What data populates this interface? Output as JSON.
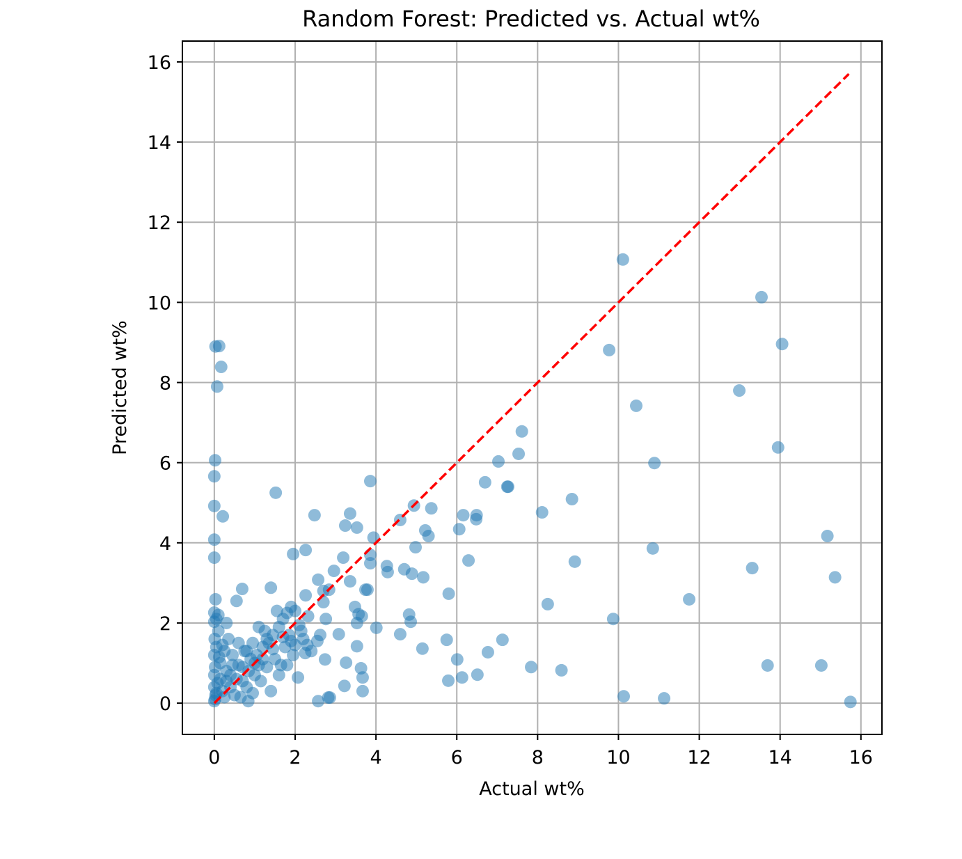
{
  "chart_data": {
    "type": "scatter",
    "title": "Random Forest: Predicted vs. Actual wt%",
    "xlabel": "Actual wt%",
    "ylabel": "Predicted wt%",
    "xlim": [
      -0.79,
      16.52
    ],
    "ylim": [
      -0.78,
      16.52
    ],
    "xticks": [
      0,
      2,
      4,
      6,
      8,
      10,
      12,
      14,
      16
    ],
    "yticks": [
      0,
      2,
      4,
      6,
      8,
      10,
      12,
      14,
      16
    ],
    "grid": true,
    "marker_color": "#1f77b4",
    "marker_alpha": 0.5,
    "reference_line": {
      "x": [
        0,
        15.7
      ],
      "y": [
        0,
        15.7
      ],
      "color": "#ff0000",
      "style": "dashed"
    },
    "points": [
      [
        10.11,
        11.07
      ],
      [
        13.54,
        10.13
      ],
      [
        14.05,
        8.96
      ],
      [
        9.77,
        8.81
      ],
      [
        12.99,
        7.8
      ],
      [
        10.44,
        7.42
      ],
      [
        13.95,
        6.38
      ],
      [
        10.89,
        5.99
      ],
      [
        7.61,
        6.78
      ],
      [
        7.53,
        6.22
      ],
      [
        7.03,
        6.03
      ],
      [
        7.25,
        5.4
      ],
      [
        7.27,
        5.4
      ],
      [
        6.7,
        5.51
      ],
      [
        8.85,
        5.09
      ],
      [
        8.11,
        4.76
      ],
      [
        15.17,
        4.17
      ],
      [
        10.85,
        3.86
      ],
      [
        8.92,
        3.53
      ],
      [
        13.31,
        3.37
      ],
      [
        15.36,
        3.14
      ],
      [
        11.75,
        2.59
      ],
      [
        8.25,
        2.47
      ],
      [
        9.87,
        2.1
      ],
      [
        7.13,
        1.58
      ],
      [
        7.84,
        0.9
      ],
      [
        8.59,
        0.82
      ],
      [
        13.69,
        0.94
      ],
      [
        15.02,
        0.94
      ],
      [
        10.13,
        0.17
      ],
      [
        11.13,
        0.12
      ],
      [
        15.74,
        0.03
      ],
      [
        6.77,
        1.27
      ],
      [
        6.51,
        0.71
      ],
      [
        6.13,
        0.64
      ],
      [
        5.79,
        0.56
      ],
      [
        6.01,
        1.09
      ],
      [
        5.75,
        1.58
      ],
      [
        5.8,
        2.73
      ],
      [
        6.29,
        3.56
      ],
      [
        6.06,
        4.34
      ],
      [
        6.16,
        4.69
      ],
      [
        6.48,
        4.59
      ],
      [
        6.49,
        4.69
      ],
      [
        5.37,
        4.86
      ],
      [
        5.3,
        4.17
      ],
      [
        5.22,
        4.31
      ],
      [
        4.94,
        4.93
      ],
      [
        4.6,
        4.57
      ],
      [
        4.98,
        3.89
      ],
      [
        5.17,
        3.14
      ],
      [
        4.89,
        3.23
      ],
      [
        4.7,
        3.34
      ],
      [
        4.82,
        2.21
      ],
      [
        4.86,
        2.03
      ],
      [
        4.6,
        1.72
      ],
      [
        5.15,
        1.36
      ],
      [
        3.86,
        5.54
      ],
      [
        3.94,
        4.13
      ],
      [
        3.86,
        3.7
      ],
      [
        3.86,
        3.49
      ],
      [
        4.27,
        3.42
      ],
      [
        4.29,
        3.27
      ],
      [
        3.74,
        2.83
      ],
      [
        3.79,
        2.83
      ],
      [
        4.01,
        1.88
      ],
      [
        3.36,
        4.73
      ],
      [
        3.24,
        4.43
      ],
      [
        3.53,
        4.38
      ],
      [
        3.19,
        3.63
      ],
      [
        3.36,
        3.04
      ],
      [
        3.48,
        2.4
      ],
      [
        3.57,
        2.22
      ],
      [
        3.65,
        2.17
      ],
      [
        3.53,
        2.0
      ],
      [
        3.53,
        1.42
      ],
      [
        3.63,
        0.87
      ],
      [
        3.67,
        0.64
      ],
      [
        3.67,
        0.3
      ],
      [
        3.26,
        1.01
      ],
      [
        3.22,
        0.43
      ],
      [
        3.08,
        1.72
      ],
      [
        2.96,
        3.3
      ],
      [
        2.84,
        2.83
      ],
      [
        2.7,
        2.8
      ],
      [
        2.57,
        3.08
      ],
      [
        2.48,
        4.69
      ],
      [
        2.26,
        3.82
      ],
      [
        2.26,
        2.69
      ],
      [
        1.95,
        3.72
      ],
      [
        1.52,
        5.25
      ],
      [
        1.4,
        2.88
      ],
      [
        0.69,
        2.85
      ],
      [
        0.55,
        2.55
      ],
      [
        2.7,
        2.52
      ],
      [
        2.76,
        2.1
      ],
      [
        2.74,
        1.09
      ],
      [
        2.57,
        0.05
      ],
      [
        2.82,
        0.14
      ],
      [
        2.86,
        0.14
      ],
      [
        2.07,
        0.64
      ],
      [
        0.84,
        0.05
      ],
      [
        0.03,
        8.9
      ],
      [
        0.12,
        8.91
      ],
      [
        0.17,
        8.39
      ],
      [
        0.07,
        7.9
      ],
      [
        0.02,
        6.06
      ],
      [
        0.0,
        5.66
      ],
      [
        0.0,
        4.92
      ],
      [
        0.21,
        4.66
      ],
      [
        0.0,
        4.08
      ],
      [
        0.0,
        3.63
      ],
      [
        0.03,
        2.59
      ],
      [
        0.0,
        2.26
      ],
      [
        0.0,
        2.03
      ],
      [
        0.05,
        2.1
      ],
      [
        0.1,
        2.2
      ],
      [
        0.3,
        2.0
      ],
      [
        2.32,
        2.17
      ],
      [
        2.62,
        1.7
      ],
      [
        2.55,
        1.55
      ],
      [
        2.4,
        1.3
      ],
      [
        2.2,
        1.6
      ],
      [
        2.1,
        1.95
      ],
      [
        2.0,
        2.3
      ],
      [
        1.9,
        2.4
      ],
      [
        1.8,
        2.25
      ],
      [
        1.7,
        2.1
      ],
      [
        1.6,
        1.9
      ],
      [
        1.55,
        2.3
      ],
      [
        1.45,
        1.7
      ],
      [
        1.35,
        1.5
      ],
      [
        1.25,
        1.8
      ],
      [
        1.2,
        1.4
      ],
      [
        1.1,
        1.9
      ],
      [
        1.05,
        1.2
      ],
      [
        0.95,
        1.5
      ],
      [
        0.9,
        1.1
      ],
      [
        0.85,
        0.8
      ],
      [
        0.75,
        1.3
      ],
      [
        0.7,
        0.9
      ],
      [
        0.6,
        1.5
      ],
      [
        0.55,
        0.6
      ],
      [
        0.45,
        1.2
      ],
      [
        0.4,
        0.4
      ],
      [
        0.35,
        1.6
      ],
      [
        0.3,
        0.8
      ],
      [
        0.25,
        1.3
      ],
      [
        0.2,
        0.3
      ],
      [
        0.15,
        1.0
      ],
      [
        0.1,
        1.8
      ],
      [
        0.08,
        0.5
      ],
      [
        0.05,
        1.4
      ],
      [
        0.03,
        0.2
      ],
      [
        0.02,
        0.9
      ],
      [
        0.01,
        1.6
      ],
      [
        0.0,
        0.05
      ],
      [
        0.0,
        0.4
      ],
      [
        0.0,
        1.2
      ],
      [
        0.0,
        0.7
      ],
      [
        0.02,
        0.1
      ],
      [
        0.05,
        0.25
      ],
      [
        1.95,
        1.2
      ],
      [
        1.85,
        1.7
      ],
      [
        1.75,
        1.4
      ],
      [
        1.65,
        0.95
      ],
      [
        1.5,
        1.1
      ],
      [
        1.4,
        0.3
      ],
      [
        1.3,
        0.9
      ],
      [
        1.15,
        0.55
      ],
      [
        1.0,
        0.7
      ],
      [
        0.95,
        0.25
      ],
      [
        0.8,
        0.4
      ],
      [
        0.65,
        0.15
      ],
      [
        0.5,
        0.2
      ],
      [
        1.6,
        0.7
      ],
      [
        1.8,
        0.95
      ],
      [
        2.0,
        1.45
      ],
      [
        2.25,
        1.25
      ],
      [
        1.9,
        1.55
      ],
      [
        1.2,
        1.1
      ],
      [
        1.0,
        1.0
      ],
      [
        0.8,
        1.3
      ],
      [
        0.6,
        0.95
      ],
      [
        0.4,
        0.7
      ],
      [
        0.3,
        0.55
      ],
      [
        0.15,
        0.6
      ],
      [
        0.12,
        1.15
      ],
      [
        0.2,
        1.45
      ],
      [
        1.7,
        1.65
      ],
      [
        1.45,
        1.35
      ],
      [
        1.3,
        1.6
      ],
      [
        1.1,
        0.95
      ],
      [
        0.7,
        0.55
      ],
      [
        2.15,
        1.8
      ],
      [
        2.3,
        1.45
      ],
      [
        0.45,
        0.95
      ],
      [
        0.25,
        0.15
      ]
    ]
  }
}
